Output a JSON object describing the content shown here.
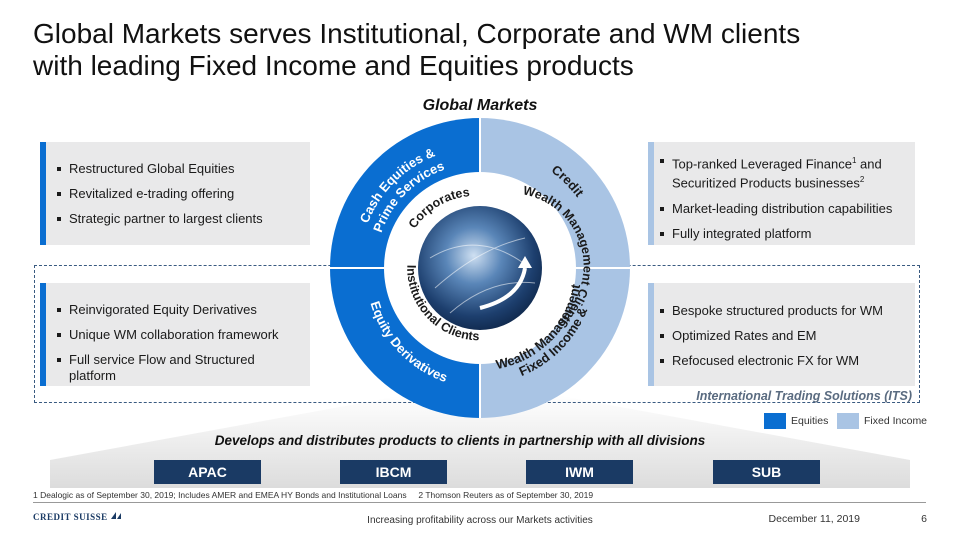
{
  "title_line1": "Global Markets serves Institutional, Corporate and WM clients",
  "title_line2": "with leading Fixed Income and Equities products",
  "circle": {
    "heading": "Global Markets",
    "outer": {
      "top_left": [
        "Cash Equities &",
        "Prime Services"
      ],
      "top_right": "Credit",
      "bottom_left": "Equity Derivatives",
      "bottom_right": [
        "Fixed Income &",
        "Wealth Management"
      ]
    },
    "inner": {
      "corporates": "Corporates",
      "wealth_clients": "Wealth Management Clients",
      "institutional": "Institutional Clients"
    }
  },
  "boxes": {
    "top_left": [
      "Restructured Global Equities",
      "Revitalized e-trading offering",
      "Strategic partner to largest clients"
    ],
    "bottom_left": [
      "Reinvigorated Equity Derivatives",
      "Unique WM collaboration framework",
      "Full service Flow and Structured platform"
    ],
    "top_right": {
      "item1_line1": "Top-ranked Leveraged Finance",
      "item1_sup1": "1",
      "item1_mid": " and",
      "item1_line2": "Securitized Products businesses",
      "item1_sup2": "2",
      "item2": "Market-leading distribution capabilities",
      "item3": "Fully integrated platform"
    },
    "bottom_right": [
      "Bespoke structured products for WM",
      "Optimized Rates and EM",
      "Refocused electronic FX for WM"
    ]
  },
  "its_label": "International Trading Solutions (ITS)",
  "legend": {
    "equities": "Equities",
    "fixed_income": "Fixed Income"
  },
  "develops": "Develops and distributes products to clients in partnership with all divisions",
  "divisions": [
    "APAC",
    "IBCM",
    "IWM",
    "SUB"
  ],
  "footnote": "1 Dealogic as of September 30, 2019; Includes AMER and EMEA HY Bonds and Institutional Loans     2 Thomson Reuters as of September 30, 2019",
  "footer": {
    "logo": "CREDIT SUISSE",
    "center": "Increasing profitability across our Markets activities",
    "date": "December 11, 2019",
    "page": "6"
  },
  "colors": {
    "equities": "#0a6ed1",
    "fixed_income": "#a9c4e4",
    "division_bg": "#1a3a64"
  }
}
